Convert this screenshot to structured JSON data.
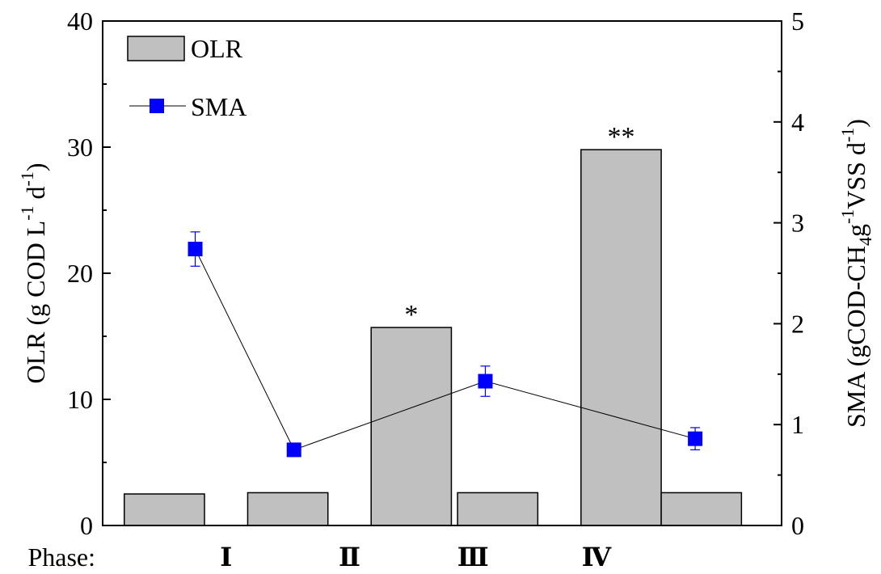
{
  "chart_data": {
    "type": "bar",
    "phase_label": "Phase:",
    "phases": [
      {
        "label": "Ⅰ",
        "position": 1.0
      },
      {
        "label": "Ⅱ",
        "position": 2.0
      },
      {
        "label": "Ⅲ",
        "position": 3.0
      },
      {
        "label": "Ⅳ",
        "position": 4.0
      }
    ],
    "x_range": [
      0.0,
      5.5
    ],
    "olr_bars": [
      {
        "x": 0.5,
        "value": 2.5
      },
      {
        "x": 1.5,
        "value": 2.6
      },
      {
        "x": 2.5,
        "value": 15.7,
        "annotation": "*"
      },
      {
        "x": 3.2,
        "value": 2.6
      },
      {
        "x": 4.2,
        "value": 29.8,
        "annotation": "**"
      },
      {
        "x": 4.85,
        "value": 2.6
      }
    ],
    "bar_width": 0.65,
    "sma_series": {
      "name": "SMA",
      "points": [
        {
          "x": 0.75,
          "value": 2.74,
          "error": 0.17
        },
        {
          "x": 1.55,
          "value": 0.75,
          "error": 0.03
        },
        {
          "x": 3.1,
          "value": 1.43,
          "error": 0.15
        },
        {
          "x": 4.8,
          "value": 0.86,
          "error": 0.11
        }
      ]
    },
    "y_left": {
      "label_main": "OLR (g COD L",
      "label_sup1": "-1",
      "label_mid": " d",
      "label_sup2": "-1",
      "label_end": ")",
      "range": [
        0,
        40
      ],
      "ticks": [
        0,
        10,
        20,
        30,
        40
      ]
    },
    "y_right": {
      "label_main": "SMA (gCOD-CH",
      "label_sub": "4",
      "label_g": "g",
      "label_sup1": "-1",
      "label_vss": "VSS d",
      "label_sup2": "-1",
      "label_end": ")",
      "range": [
        0,
        5
      ],
      "ticks": [
        0,
        1,
        2,
        3,
        4,
        5
      ]
    },
    "legend": {
      "placement": "top-left",
      "bar_label": "OLR",
      "line_label": "SMA"
    },
    "colors": {
      "bar_fill": "#c0c0c0",
      "bar_stroke": "#000000",
      "marker": "#0000ff",
      "line": "#000000"
    },
    "grid": false
  }
}
